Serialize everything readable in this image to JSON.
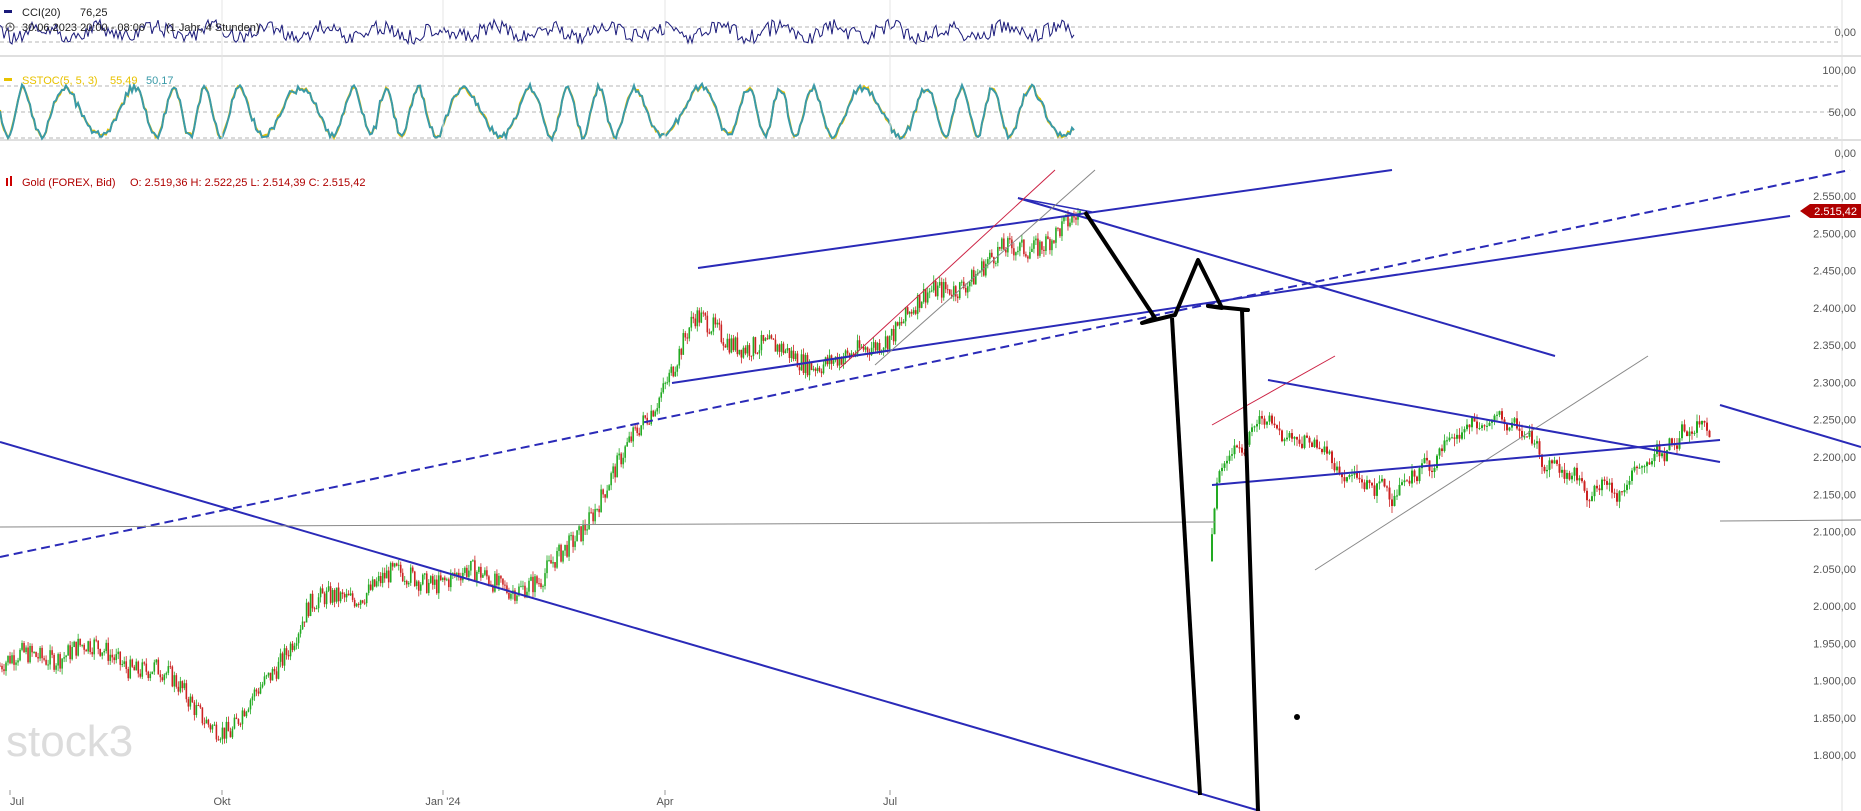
{
  "cci": {
    "name": "CCI(20)",
    "value": "76,25",
    "range": "30.06.2023 20:00 - 08:00",
    "period": "(1 Jahr, 4 Stunden)",
    "ticks": [
      "0,00"
    ],
    "color": "#1a1a7a"
  },
  "sstoc": {
    "name": "SSTOC(5, 5, 3)",
    "value_k": "55,49",
    "value_d": "50,17",
    "ticks": [
      "100,00",
      "50,00",
      "0,00"
    ],
    "color_k": "#e8c200",
    "color_d": "#3a9aa8"
  },
  "main": {
    "title": "Gold (FOREX, Bid)",
    "ohlc": "O: 2.519,36  H: 2.522,25  L: 2.514,39  C: 2.515,42",
    "last_price": "2.515,42",
    "last_price_color": "#b00000",
    "watermark": "stock3",
    "trendline_color": "#2a2ab8"
  },
  "chart_data": {
    "type": "candlestick",
    "instrument": "Gold (FOREX, Bid)",
    "interval": "4 Stunden",
    "ylim": [
      1780,
      2565
    ],
    "y_ticks": [
      "2.550,00",
      "2.500,00",
      "2.450,00",
      "2.400,00",
      "2.350,00",
      "2.300,00",
      "2.250,00",
      "2.200,00",
      "2.150,00",
      "2.100,00",
      "2.050,00",
      "2.000,00",
      "1.950,00",
      "1.900,00",
      "1.850,00",
      "1.800,00"
    ],
    "x_ticks": [
      "Jul",
      "Okt",
      "Jan '24",
      "Apr",
      "Jul"
    ],
    "approx_price_path": [
      {
        "t": "Jul 2023",
        "price": 1920
      },
      {
        "t": "Aug 2023",
        "price": 1945
      },
      {
        "t": "Sep 2023",
        "price": 1915
      },
      {
        "t": "Okt 2023",
        "price": 1825
      },
      {
        "t": "Nov 2023",
        "price": 1995
      },
      {
        "t": "Dez 2023",
        "price": 2035
      },
      {
        "t": "Jan 2024",
        "price": 2040
      },
      {
        "t": "Feb 2024",
        "price": 2025
      },
      {
        "t": "Mär 2024",
        "price": 2180
      },
      {
        "t": "Apr 2024",
        "price": 2380
      },
      {
        "t": "Mai 2024",
        "price": 2340
      },
      {
        "t": "Jun 2024",
        "price": 2325
      },
      {
        "t": "Jul 2024",
        "price": 2410
      },
      {
        "t": "Aug 2024",
        "price": 2470
      },
      {
        "t": "Sep 2024",
        "price": 2515
      }
    ],
    "last": 2515.42,
    "open": 2519.36,
    "high": 2522.25,
    "low": 2514.39,
    "close": 2515.42
  }
}
